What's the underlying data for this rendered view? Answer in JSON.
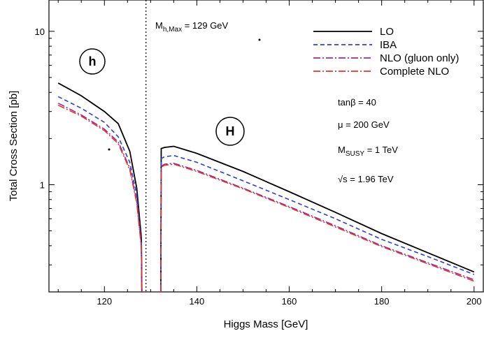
{
  "chart_data": {
    "type": "line",
    "xlabel": "Higgs Mass  [GeV]",
    "ylabel": "Total Cross Section  [pb]",
    "xlim": [
      108,
      202
    ],
    "ylim": [
      0.2,
      16
    ],
    "yscale": "log",
    "x_ticks": [
      120,
      140,
      160,
      180,
      200
    ],
    "y_ticks": [
      {
        "value": 1,
        "label": "1"
      },
      {
        "value": 10,
        "label": "10"
      }
    ],
    "grid": false,
    "legend_position": "top-right",
    "vline": {
      "x": 129,
      "label_main": "M",
      "label_sub": "h,Max",
      "label_rest": " = 129 GeV"
    },
    "annotations": {
      "h_label": "h",
      "H_label": "H",
      "tanb": "tanβ = 40",
      "mu": "μ = 200 GeV",
      "msusy_main": "M",
      "msusy_sub": "SUSY",
      "msusy_rest": " = 1 TeV",
      "sqrts": "√s = 1.96 TeV"
    },
    "series": [
      {
        "name": "LO",
        "color": "#000000",
        "dash": "",
        "h_branch": [
          [
            110,
            4.6
          ],
          [
            115,
            3.8
          ],
          [
            120,
            3.0
          ],
          [
            123,
            2.5
          ],
          [
            125.5,
            1.65
          ],
          [
            127,
            0.95
          ],
          [
            128,
            0.45
          ],
          [
            128.1,
            0.2
          ]
        ],
        "H_branch": [
          [
            132.2,
            0.2
          ],
          [
            132.3,
            1.72
          ],
          [
            133,
            1.75
          ],
          [
            135,
            1.78
          ],
          [
            140,
            1.6
          ],
          [
            150,
            1.22
          ],
          [
            160,
            0.9
          ],
          [
            170,
            0.66
          ],
          [
            180,
            0.48
          ],
          [
            190,
            0.36
          ],
          [
            200,
            0.27
          ]
        ]
      },
      {
        "name": "IBA",
        "color": "#2a3fd6",
        "dash": "6,4",
        "h_branch": [
          [
            110,
            3.75
          ],
          [
            115,
            3.15
          ],
          [
            120,
            2.55
          ],
          [
            123,
            2.05
          ],
          [
            125.5,
            1.4
          ],
          [
            127,
            0.85
          ],
          [
            128,
            0.42
          ],
          [
            128.1,
            0.2
          ]
        ],
        "H_branch": [
          [
            132.2,
            0.2
          ],
          [
            132.3,
            1.48
          ],
          [
            133,
            1.52
          ],
          [
            135,
            1.55
          ],
          [
            140,
            1.4
          ],
          [
            150,
            1.06
          ],
          [
            160,
            0.8
          ],
          [
            170,
            0.6
          ],
          [
            180,
            0.44
          ],
          [
            190,
            0.34
          ],
          [
            200,
            0.26
          ]
        ]
      },
      {
        "name": "NLO (gluon only)",
        "color": "#9b2a9b",
        "dash": "10,3,2,3",
        "h_branch": [
          [
            110,
            3.4
          ],
          [
            115,
            2.85
          ],
          [
            120,
            2.3
          ],
          [
            123,
            1.9
          ],
          [
            125.5,
            1.28
          ],
          [
            127,
            0.78
          ],
          [
            128,
            0.4
          ],
          [
            128.1,
            0.2
          ]
        ],
        "H_branch": [
          [
            132.2,
            0.2
          ],
          [
            132.3,
            1.32
          ],
          [
            133,
            1.36
          ],
          [
            135,
            1.38
          ],
          [
            140,
            1.24
          ],
          [
            150,
            0.95
          ],
          [
            160,
            0.72
          ],
          [
            170,
            0.54
          ],
          [
            180,
            0.4
          ],
          [
            190,
            0.31
          ],
          [
            200,
            0.24
          ]
        ]
      },
      {
        "name": "Complete NLO",
        "color": "#e0362a",
        "dash": "10,3,2,3",
        "h_branch": [
          [
            110,
            3.3
          ],
          [
            115,
            2.8
          ],
          [
            120,
            2.25
          ],
          [
            123,
            1.85
          ],
          [
            125.5,
            1.25
          ],
          [
            127,
            0.76
          ],
          [
            128,
            0.39
          ],
          [
            128.1,
            0.2
          ]
        ],
        "H_branch": [
          [
            132.2,
            0.2
          ],
          [
            132.3,
            1.3
          ],
          [
            133,
            1.34
          ],
          [
            135,
            1.36
          ],
          [
            140,
            1.22
          ],
          [
            150,
            0.94
          ],
          [
            160,
            0.71
          ],
          [
            170,
            0.53
          ],
          [
            180,
            0.395
          ],
          [
            190,
            0.305
          ],
          [
            200,
            0.235
          ]
        ]
      }
    ]
  }
}
